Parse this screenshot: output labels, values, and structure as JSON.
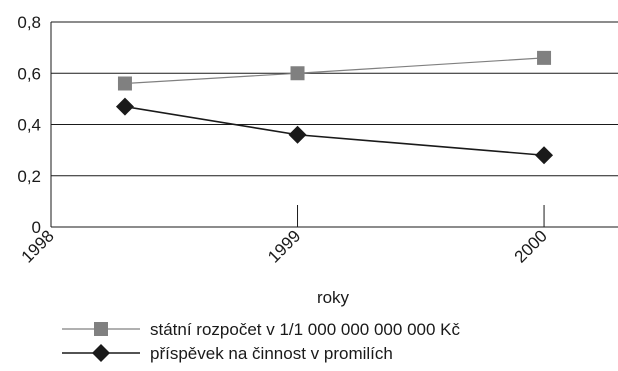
{
  "chart_data": {
    "type": "line",
    "xlabel": "roky",
    "ylabel": "",
    "x_tick_labels": [
      "1998",
      "1999",
      "2000"
    ],
    "y_tick_labels": [
      "0",
      "0,2",
      "0,4",
      "0,6",
      "0,8"
    ],
    "xlim": [
      1998,
      2000.3
    ],
    "ylim": [
      0,
      0.8
    ],
    "grid": "horizontal",
    "legend_position": "bottom",
    "series": [
      {
        "name": "státní rozpočet v 1/1 000 000 000 000 Kč",
        "color": "#808080",
        "marker": "square",
        "x": [
          1998.3,
          1999,
          2000
        ],
        "y": [
          0.56,
          0.6,
          0.66
        ]
      },
      {
        "name": "příspěvek na činnost v promilích",
        "color": "#1a1a1a",
        "marker": "diamond",
        "x": [
          1998.3,
          1999,
          2000
        ],
        "y": [
          0.47,
          0.36,
          0.28
        ]
      }
    ]
  }
}
